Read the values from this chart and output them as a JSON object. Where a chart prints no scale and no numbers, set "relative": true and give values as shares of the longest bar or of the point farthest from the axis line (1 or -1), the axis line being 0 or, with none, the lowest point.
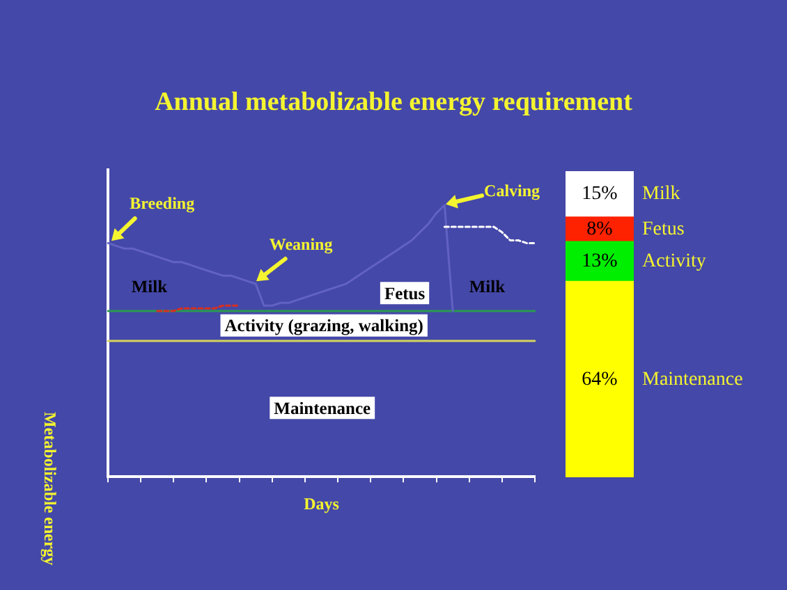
{
  "chart_data": [
    {
      "type": "line",
      "title": "Annual metabolizable energy requirement",
      "xlabel": "Days",
      "ylabel": "Metabolizable energy",
      "relative": true,
      "tick_labels": false,
      "marker": "none",
      "categories": [
        null,
        null,
        null,
        null,
        null,
        null,
        null,
        null,
        null,
        null,
        null,
        null,
        null,
        null,
        null,
        null,
        null,
        null,
        null,
        null,
        null,
        null,
        null,
        null,
        null,
        null,
        null,
        null,
        null,
        null,
        null,
        null,
        null,
        null,
        null,
        null,
        null,
        null,
        null,
        null,
        null,
        null,
        null,
        null,
        null,
        null,
        null,
        null,
        null,
        null,
        null,
        null,
        null
      ],
      "series": [
        {
          "color": "#d4d45a",
          "values": [
            0.5,
            0.5,
            0.5,
            0.5,
            0.5,
            0.5,
            0.5,
            0.5,
            0.5,
            0.5,
            0.5,
            0.5,
            0.5,
            0.5,
            0.5,
            0.5,
            0.5,
            0.5,
            0.5,
            0.5,
            0.5,
            0.5,
            0.5,
            0.5,
            0.5,
            0.5,
            0.5,
            0.5,
            0.5,
            0.5,
            0.5,
            0.5,
            0.5,
            0.5,
            0.5,
            0.5,
            0.5,
            0.5,
            0.5,
            0.5,
            0.5,
            0.5,
            0.5,
            0.5,
            0.5,
            0.5,
            0.5,
            0.5,
            0.5,
            0.5,
            0.5,
            0.5,
            0.5
          ]
        },
        {
          "color": "#2a9a50",
          "values": [
            0.61,
            0.61,
            0.61,
            0.61,
            0.61,
            0.61,
            0.61,
            0.61,
            0.61,
            0.61,
            0.61,
            0.61,
            0.61,
            0.61,
            0.61,
            0.61,
            0.61,
            0.61,
            0.61,
            0.61,
            0.61,
            0.61,
            0.61,
            0.61,
            0.61,
            0.61,
            0.61,
            0.61,
            0.61,
            0.61,
            0.61,
            0.61,
            0.61,
            0.61,
            0.61,
            0.61,
            0.61,
            0.61,
            0.61,
            0.61,
            0.61,
            0.61,
            0.61,
            0.61,
            0.61,
            0.61,
            0.61,
            0.61,
            0.61,
            0.61,
            0.61,
            0.61,
            0.61
          ]
        },
        {
          "color": "#d83020",
          "line_style": "dotted",
          "values": [
            null,
            null,
            null,
            null,
            null,
            null,
            0.61,
            0.61,
            0.61,
            0.62,
            0.62,
            0.62,
            0.62,
            0.62,
            0.63,
            0.63,
            0.63,
            null,
            null,
            null,
            null,
            null,
            null,
            null,
            null,
            null,
            null,
            null,
            null,
            null,
            null,
            null,
            null,
            null,
            null,
            null,
            null,
            null,
            null,
            null,
            null,
            null,
            null,
            null,
            null,
            null,
            null,
            null,
            null,
            null,
            null,
            null,
            null
          ]
        },
        {
          "color": "#6262c2",
          "values": [
            0.86,
            0.85,
            0.84,
            0.84,
            0.83,
            0.82,
            0.81,
            0.8,
            0.79,
            0.79,
            0.78,
            0.77,
            0.76,
            0.75,
            0.74,
            0.74,
            0.73,
            0.72,
            0.71,
            0.63,
            0.63,
            0.64,
            0.64,
            0.65,
            0.66,
            0.67,
            0.68,
            0.69,
            0.7,
            0.71,
            0.73,
            0.75,
            0.77,
            0.79,
            0.81,
            0.83,
            0.85,
            0.87,
            0.9,
            0.93,
            0.97,
            1,
            0.61,
            null,
            null,
            null,
            null,
            null,
            null,
            null,
            null,
            null,
            null
          ]
        },
        {
          "color": "#ffffff",
          "line_style": "dotted",
          "values": [
            null,
            null,
            null,
            null,
            null,
            null,
            null,
            null,
            null,
            null,
            null,
            null,
            null,
            null,
            null,
            null,
            null,
            null,
            null,
            null,
            null,
            null,
            null,
            null,
            null,
            null,
            null,
            null,
            null,
            null,
            null,
            null,
            null,
            null,
            null,
            null,
            null,
            null,
            null,
            null,
            null,
            0.92,
            0.92,
            0.92,
            0.92,
            0.92,
            0.92,
            0.92,
            0.9,
            0.87,
            0.87,
            0.86,
            0.86
          ]
        }
      ],
      "annotations": [
        "Breeding",
        "Weaning",
        "Calving",
        "Milk",
        "Fetus",
        "Milk",
        "Activity (grazing, walking)",
        "Maintenance"
      ]
    },
    {
      "type": "bar",
      "stacked": true,
      "categories": [
        null
      ],
      "ylim": [
        0,
        100
      ],
      "tick_labels": false,
      "series": [
        {
          "name": "Maintenance",
          "color": "#ffff00",
          "values": [
            64
          ],
          "value_labels": [
            "64%"
          ]
        },
        {
          "name": "Activity",
          "color": "#00ee00",
          "values": [
            13
          ],
          "value_labels": [
            "13%"
          ]
        },
        {
          "name": "Fetus",
          "color": "#ff2200",
          "values": [
            8
          ],
          "value_labels": [
            "8%"
          ]
        },
        {
          "name": "Milk",
          "color": "#ffffff",
          "values": [
            15
          ],
          "value_labels": [
            "15%"
          ]
        }
      ]
    }
  ]
}
